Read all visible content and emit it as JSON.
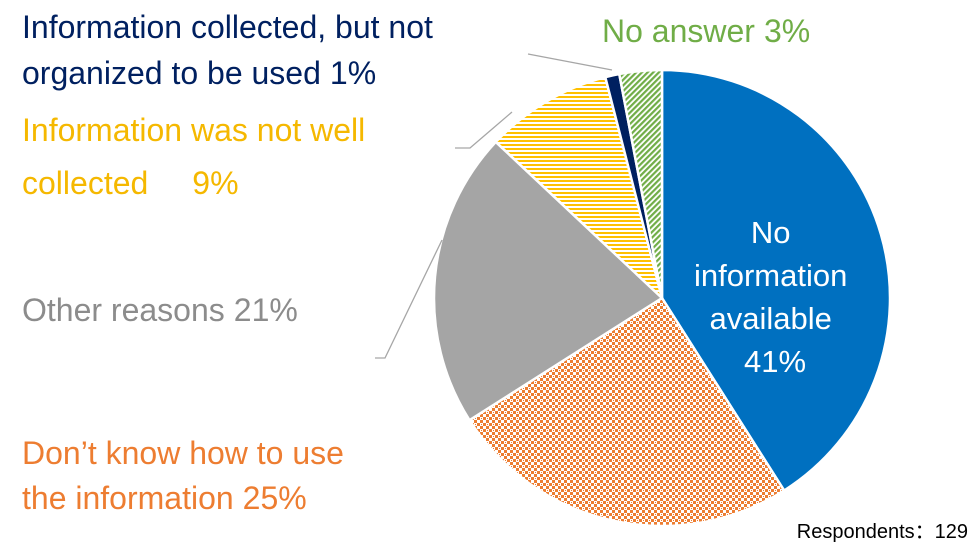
{
  "chart_data": {
    "type": "pie",
    "categories": [
      [
        "No",
        "information",
        "available"
      ],
      [
        "Don’t know how to use",
        "the information"
      ],
      [
        "Other reasons"
      ],
      [
        "Information was not well",
        "collected"
      ],
      [
        "Information collected, but not",
        "organized to be used"
      ],
      [
        "No answer"
      ]
    ],
    "values": [
      41,
      25,
      21,
      9,
      1,
      3
    ],
    "value_labels": [
      "41%",
      "25%",
      "21%",
      "9%",
      "1%",
      "3%"
    ],
    "colors": [
      "#0070c0",
      "#ed7d31",
      "#a5a5a5",
      "#ffc000",
      "#002060",
      "#70ad47"
    ],
    "note": "Respondents：129"
  }
}
